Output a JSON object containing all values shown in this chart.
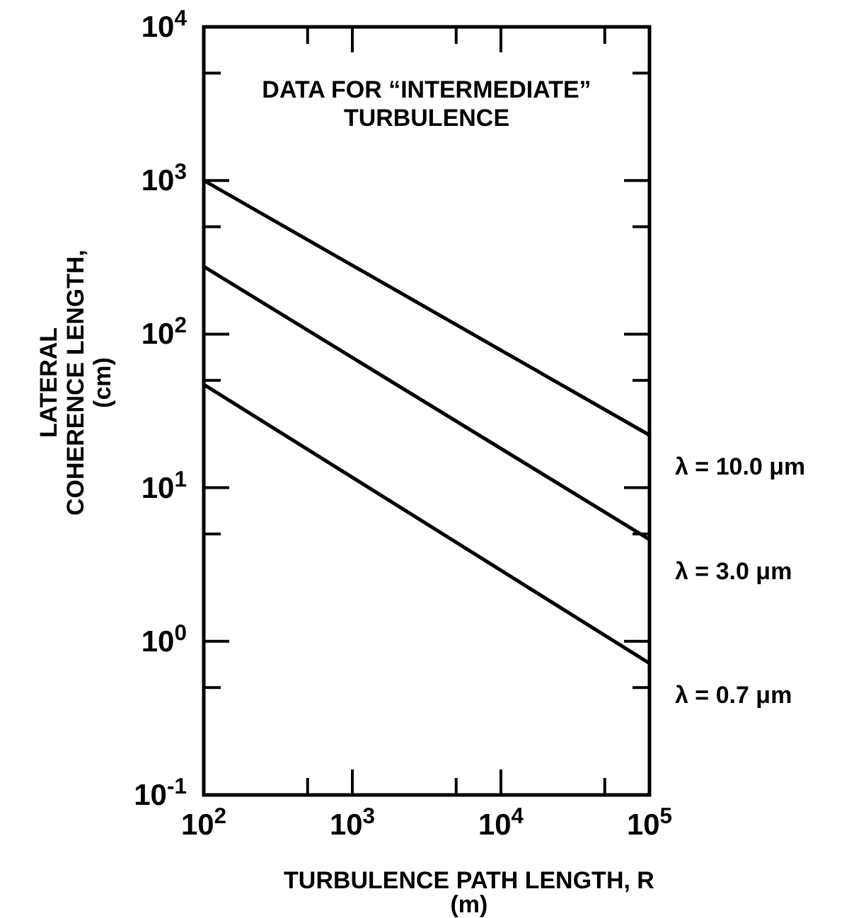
{
  "chart_data": {
    "type": "line",
    "xlabel": "TURBULENCE PATH LENGTH, R\n(m)",
    "ylabel": "LATERAL\nCOHERENCE LENGTH,\n(cm)",
    "annotations": [
      "DATA FOR “INTERMEDIATE”\nTURBULENCE"
    ],
    "log": "xy",
    "grid": false,
    "legend": "right",
    "marker": "none",
    "line_style": "solid",
    "x": [
      100,
      100000
    ],
    "series": [
      {
        "name": "λ = 10.0 μm",
        "color": "#000000",
        "values": [
          1000,
          22
        ]
      },
      {
        "name": "λ = 3.0 μm",
        "color": "#000000",
        "values": [
          275,
          4.6
        ]
      },
      {
        "name": "λ = 0.7 μm",
        "color": "#000000",
        "values": [
          47,
          0.72
        ]
      }
    ],
    "xlim": [
      100,
      100000
    ],
    "xticks": [
      {
        "value": 100,
        "label": "10$^{2}$"
      },
      {
        "value": 500,
        "label": null
      },
      {
        "value": 1000,
        "label": "10$^{3}$"
      },
      {
        "value": 5000,
        "label": null
      },
      {
        "value": 10000,
        "label": "10$^{4}$"
      },
      {
        "value": 50000,
        "label": null
      },
      {
        "value": 100000,
        "label": "10$^{5}$"
      }
    ],
    "ylim": [
      0.1,
      10000
    ],
    "yticks": [
      {
        "value": 0.1,
        "label": "10$^{-1}$"
      },
      {
        "value": 0.5,
        "label": null
      },
      {
        "value": 1,
        "label": "10$^{0}$"
      },
      {
        "value": 5,
        "label": null
      },
      {
        "value": 10,
        "label": "10$^{1}$"
      },
      {
        "value": 50,
        "label": null
      },
      {
        "value": 100,
        "label": "10$^{2}$"
      },
      {
        "value": 500,
        "label": null
      },
      {
        "value": 1000,
        "label": "10$^{3}$"
      },
      {
        "value": 5000,
        "label": null
      },
      {
        "value": 10000,
        "label": "10$^{4}$"
      }
    ]
  }
}
